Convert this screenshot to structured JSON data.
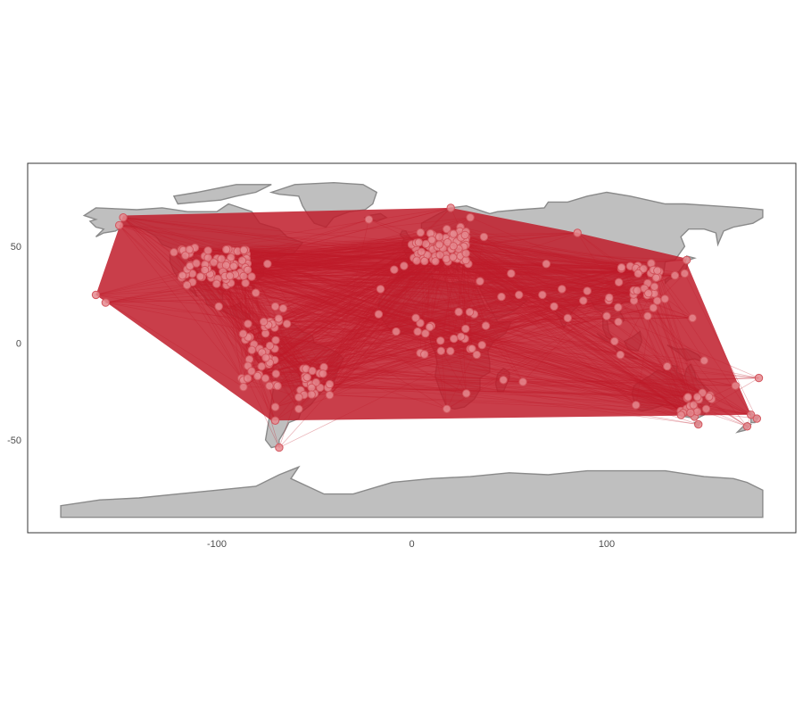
{
  "chart_data": {
    "type": "scatter",
    "title": "",
    "xlabel": "",
    "ylabel": "",
    "xlim": [
      -197,
      197
    ],
    "ylim": [
      -98,
      93
    ],
    "x_ticks": [
      -100,
      0,
      100
    ],
    "y_ticks": [
      50,
      0,
      -50
    ],
    "x_tick_labels": [
      "-100",
      "0",
      "100"
    ],
    "y_tick_labels": [
      "50",
      "0",
      "-50"
    ],
    "grid": false,
    "legend": "none",
    "route_color": "#c01c2a",
    "point_fill": "#e58a8f",
    "point_stroke": "#d2555d",
    "land_fill": "#bfbfbf",
    "land_stroke": "#8a8a8a",
    "hubs": [
      [
        -148,
        65
      ],
      [
        -162,
        25
      ],
      [
        -150,
        61
      ],
      [
        -157,
        21
      ],
      [
        -122,
        47
      ],
      [
        -118,
        34
      ],
      [
        -87,
        41
      ],
      [
        -74,
        41
      ],
      [
        -80,
        26
      ],
      [
        -95,
        30
      ],
      [
        -105,
        40
      ],
      [
        -99,
        19
      ],
      [
        -84,
        10
      ],
      [
        -75,
        5
      ],
      [
        -77,
        -12
      ],
      [
        -70,
        -33
      ],
      [
        -58,
        -34
      ],
      [
        -47,
        -23
      ],
      [
        -43,
        -23
      ],
      [
        -70,
        -40
      ],
      [
        -68,
        -54
      ],
      [
        -64,
        10
      ],
      [
        -70,
        19
      ],
      [
        -66,
        18
      ],
      [
        -22,
        64
      ],
      [
        -16,
        28
      ],
      [
        -9,
        38
      ],
      [
        -4,
        40
      ],
      [
        2,
        49
      ],
      [
        0,
        51
      ],
      [
        9,
        50
      ],
      [
        12,
        55
      ],
      [
        18,
        59
      ],
      [
        25,
        60
      ],
      [
        37,
        55
      ],
      [
        30,
        65
      ],
      [
        20,
        70
      ],
      [
        -17,
        15
      ],
      [
        -8,
        6
      ],
      [
        3,
        6
      ],
      [
        10,
        9
      ],
      [
        7,
        5
      ],
      [
        38,
        9
      ],
      [
        36,
        -1
      ],
      [
        32,
        15
      ],
      [
        28,
        -26
      ],
      [
        18,
        -34
      ],
      [
        47,
        -19
      ],
      [
        57,
        -20
      ],
      [
        15,
        -4
      ],
      [
        30,
        -3
      ],
      [
        29,
        41
      ],
      [
        35,
        32
      ],
      [
        46,
        24
      ],
      [
        55,
        25
      ],
      [
        51,
        36
      ],
      [
        69,
        41
      ],
      [
        67,
        25
      ],
      [
        77,
        28
      ],
      [
        73,
        19
      ],
      [
        80,
        13
      ],
      [
        88,
        22
      ],
      [
        90,
        27
      ],
      [
        85,
        57
      ],
      [
        100,
        14
      ],
      [
        104,
        1
      ],
      [
        106,
        11
      ],
      [
        107,
        -6
      ],
      [
        116,
        40
      ],
      [
        121,
        31
      ],
      [
        114,
        22
      ],
      [
        121,
        25
      ],
      [
        127,
        37
      ],
      [
        140,
        36
      ],
      [
        135,
        35
      ],
      [
        141,
        43
      ],
      [
        144,
        13
      ],
      [
        121,
        14
      ],
      [
        115,
        -32
      ],
      [
        131,
        -12
      ],
      [
        138,
        -35
      ],
      [
        145,
        -38
      ],
      [
        151,
        -34
      ],
      [
        153,
        -27
      ],
      [
        147,
        -42
      ],
      [
        174,
        -37
      ],
      [
        172,
        -43
      ],
      [
        177,
        -39
      ],
      [
        166,
        -22
      ],
      [
        178,
        -18
      ],
      [
        150,
        -9
      ]
    ]
  }
}
